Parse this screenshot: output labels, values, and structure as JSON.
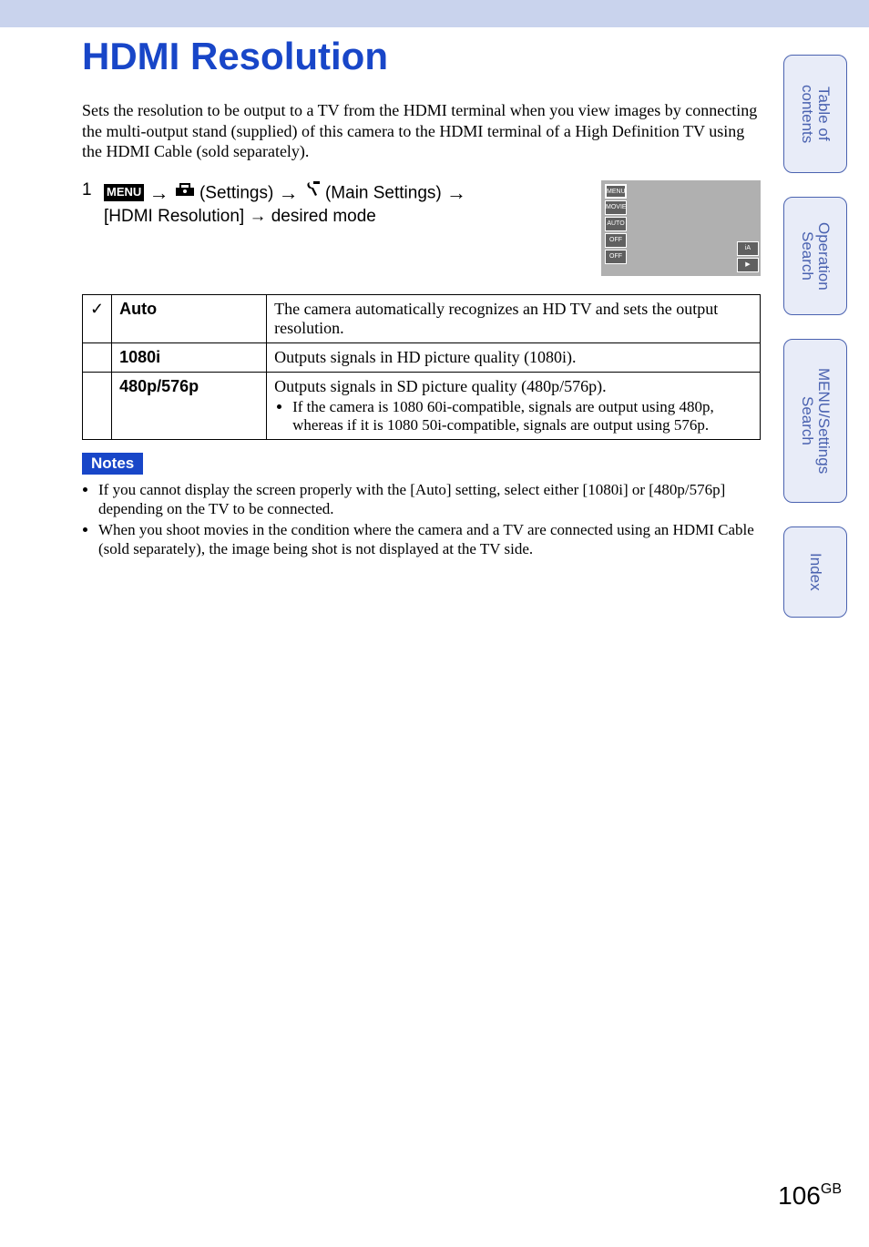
{
  "page": {
    "title": "HDMI Resolution",
    "intro": "Sets the resolution to be output to a TV from the HDMI terminal when you view images by connecting the multi-output stand (supplied) of this camera to the HDMI terminal of a High Definition TV using the HDMI Cable (sold separately).",
    "page_number": "106",
    "page_suffix": "GB"
  },
  "step": {
    "number": "1",
    "menu_label": "MENU",
    "arrow": " → ",
    "settings_label": "(Settings)",
    "main_settings_label": "(Main Settings)",
    "line2": "[HDMI Resolution] → desired mode"
  },
  "options": [
    {
      "check": "✓",
      "label": "Auto",
      "desc": "The camera automatically recognizes an HD TV and sets the output resolution.",
      "bullets": []
    },
    {
      "check": "",
      "label": "1080i",
      "desc": "Outputs signals in HD picture quality (1080i).",
      "bullets": []
    },
    {
      "check": "",
      "label": "480p/576p",
      "desc": "Outputs signals in SD picture quality (480p/576p).",
      "bullets": [
        "If the camera is 1080 60i-compatible, signals are output using 480p, whereas if it is 1080 50i-compatible, signals are output using 576p."
      ]
    }
  ],
  "notes": {
    "heading": "Notes",
    "items": [
      "If you cannot display the screen properly with the [Auto] setting, select either [1080i] or [480p/576p] depending on the TV to be connected.",
      "When you shoot movies in the condition where the camera and a TV are connected using an HDMI Cable (sold separately), the image being shot is not displayed at the TV side."
    ]
  },
  "tabs": [
    "Table of contents",
    "Operation Search",
    "MENU/Settings Search",
    "Index"
  ],
  "colors": {
    "header_bg": "#c9d3ed",
    "title_color": "#1846c8",
    "tab_bg": "#e8ecf8",
    "tab_border": "#4a62b0",
    "notes_badge_bg": "#1846c8"
  },
  "thumb": {
    "left_icons": [
      "MENU",
      "MOVIE",
      "AUTO",
      "OFF",
      "OFF"
    ],
    "right_icons": [
      "iA",
      "▶"
    ]
  }
}
